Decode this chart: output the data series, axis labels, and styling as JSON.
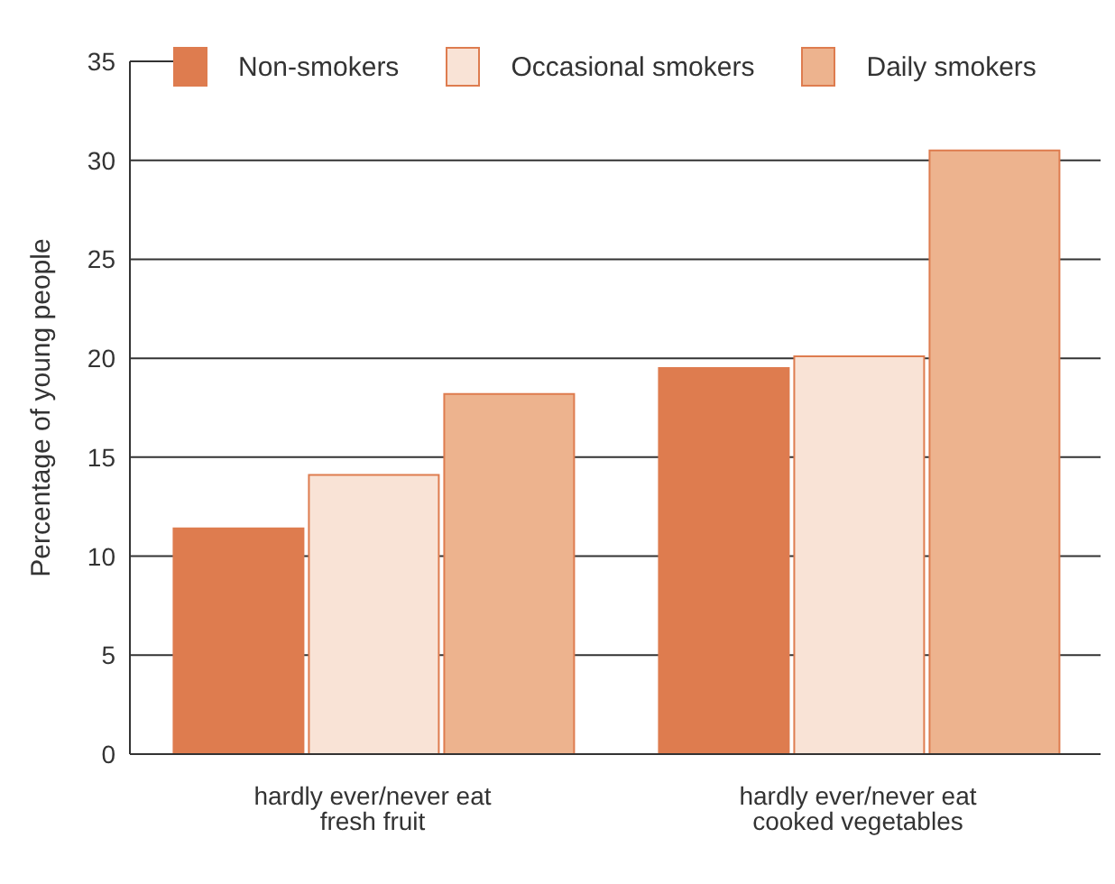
{
  "chart_data": {
    "type": "bar",
    "ylabel": "Percentage of young people",
    "categories": [
      "hardly ever/never eat fresh fruit",
      "hardly ever/never eat cooked vegetables"
    ],
    "series": [
      {
        "name": "Non-smokers",
        "color": "#de7c4f",
        "values": [
          11.4,
          19.5
        ]
      },
      {
        "name": "Occasional smokers",
        "color": "#f9e3d6",
        "values": [
          14.1,
          20.1
        ]
      },
      {
        "name": "Daily smokers",
        "color": "#edb38e",
        "values": [
          18.2,
          30.5
        ]
      }
    ],
    "ylim": [
      0,
      35
    ],
    "yticks": [
      0,
      5,
      10,
      15,
      20,
      25,
      30,
      35
    ],
    "grid": "y",
    "legend": "top"
  }
}
